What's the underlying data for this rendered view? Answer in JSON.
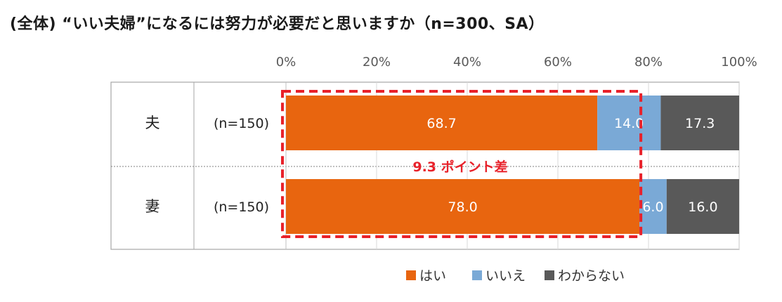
{
  "title": "(全体) “いい夫婦”になるには努力が必要だと思いますか（n=300、SA）",
  "chart_data": {
    "type": "bar",
    "orientation": "horizontal",
    "stacked": "percent",
    "categories": [
      "夫",
      "妻"
    ],
    "sample_sizes": [
      "(n=150)",
      "(n=150)"
    ],
    "series": [
      {
        "name": "はい",
        "values": [
          68.7,
          78.0
        ],
        "color": "#e8650f"
      },
      {
        "name": "いいえ",
        "values": [
          14.0,
          6.0
        ],
        "color": "#7aa9d6"
      },
      {
        "name": "わからない",
        "values": [
          17.3,
          16.0
        ],
        "color": "#595959"
      }
    ],
    "xlim": [
      0,
      100
    ],
    "xticks": [
      "0%",
      "20%",
      "40%",
      "60%",
      "80%",
      "100%"
    ],
    "legend_position": "bottom",
    "grid": true,
    "annotation": "9.3 ポイント差"
  }
}
